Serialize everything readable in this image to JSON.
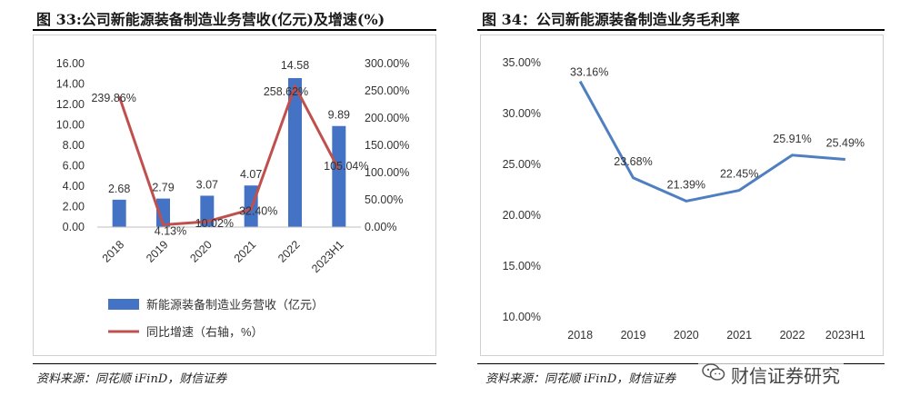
{
  "left_figure": {
    "title": "图 33:公司新能源装备制造业务营收(亿元)及增速(%)",
    "source": "资料来源：同花顺 iFinD，财信证券"
  },
  "right_figure": {
    "title": "图 34：公司新能源装备制造业务毛利率",
    "source": "资料来源：同花顺 iFinD，财信证券"
  },
  "watermark": {
    "icon": "wechat-icon",
    "text": "财信证券研究"
  },
  "chart_data": [
    {
      "type": "bar",
      "categories": [
        "2018",
        "2019",
        "2020",
        "2021",
        "2022",
        "2023H1"
      ],
      "series": [
        {
          "name": "新能源装备制造业务营收（亿元）",
          "type": "bar",
          "axis": "left",
          "color": "#4472C4",
          "values": [
            2.68,
            2.79,
            3.07,
            4.07,
            14.58,
            9.89
          ],
          "labels": [
            "2.68",
            "2.79",
            "3.07",
            "4.07",
            "14.58",
            "9.89"
          ]
        },
        {
          "name": "同比增速（右轴，%）",
          "type": "line",
          "axis": "right",
          "color": "#C0504D",
          "values": [
            239.86,
            4.13,
            10.02,
            32.4,
            258.62,
            105.04
          ],
          "labels": [
            "239.86%",
            "4.13%",
            "10.02%",
            "32.40%",
            "258.62%",
            "105.04%"
          ]
        }
      ],
      "ylim_left": [
        0,
        16
      ],
      "yticks_left": [
        "0.00",
        "2.00",
        "4.00",
        "6.00",
        "8.00",
        "10.00",
        "12.00",
        "14.00",
        "16.00"
      ],
      "ylim_right": [
        0,
        300
      ],
      "yticks_right": [
        "0.00%",
        "50.00%",
        "100.00%",
        "150.00%",
        "200.00%",
        "250.00%",
        "300.00%"
      ],
      "legend_position": "bottom",
      "grid": false
    },
    {
      "type": "line",
      "categories": [
        "2018",
        "2019",
        "2020",
        "2021",
        "2022",
        "2023H1"
      ],
      "series": [
        {
          "color": "#4F7FC0",
          "values": [
            33.16,
            23.68,
            21.39,
            22.45,
            25.91,
            25.49
          ],
          "labels": [
            "33.16%",
            "23.68%",
            "21.39%",
            "22.45%",
            "25.91%",
            "25.49%"
          ]
        }
      ],
      "ylim": [
        10,
        35
      ],
      "yticks": [
        "10.00%",
        "15.00%",
        "20.00%",
        "25.00%",
        "30.00%",
        "35.00%"
      ],
      "grid": false
    }
  ]
}
